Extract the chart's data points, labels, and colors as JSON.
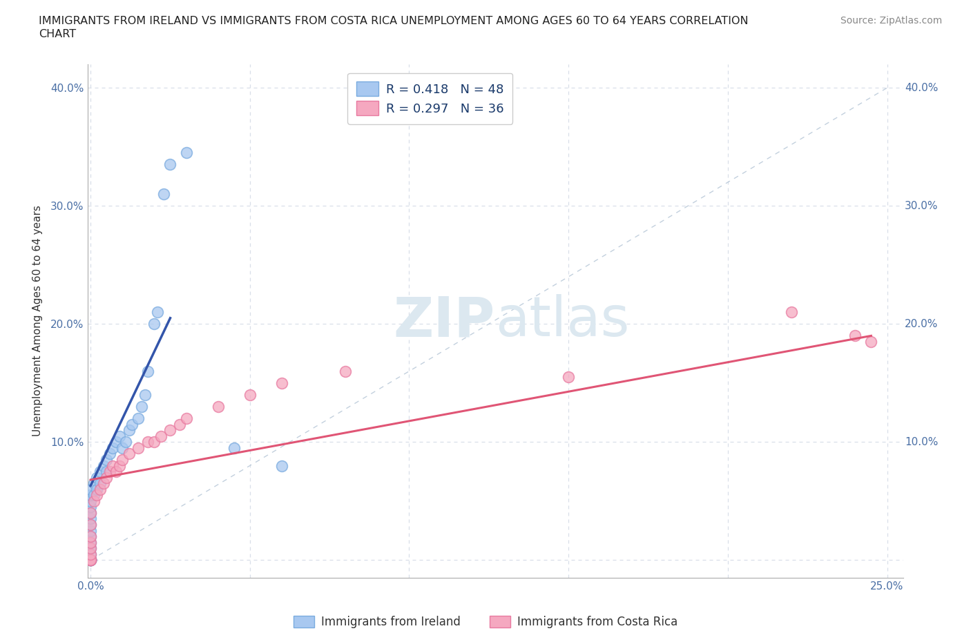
{
  "title_line1": "IMMIGRANTS FROM IRELAND VS IMMIGRANTS FROM COSTA RICA UNEMPLOYMENT AMONG AGES 60 TO 64 YEARS CORRELATION",
  "title_line2": "CHART",
  "source": "Source: ZipAtlas.com",
  "ylabel": "Unemployment Among Ages 60 to 64 years",
  "xlim": [
    -0.001,
    0.255
  ],
  "ylim": [
    -0.015,
    0.42
  ],
  "xticks": [
    0.0,
    0.05,
    0.1,
    0.15,
    0.2,
    0.25
  ],
  "yticks": [
    0.0,
    0.1,
    0.2,
    0.3,
    0.4
  ],
  "xticklabels": [
    "0.0%",
    "",
    "",
    "",
    "",
    "25.0%"
  ],
  "yticklabels": [
    "",
    "10.0%",
    "20.0%",
    "30.0%",
    "40.0%"
  ],
  "color_ireland": "#a8c8f0",
  "color_ireland_edge": "#7aabdf",
  "color_costa_rica": "#f5a8c0",
  "color_costa_rica_edge": "#e87aa0",
  "color_line_ireland": "#3355aa",
  "color_line_costa_rica": "#e05575",
  "color_ref_line": "#b8c8d8",
  "background_color": "#ffffff",
  "grid_color": "#d8dfe8",
  "watermark_color": "#dce8f0",
  "ireland_x": [
    0.0,
    0.0,
    0.0,
    0.0,
    0.0,
    0.0,
    0.0,
    0.0,
    0.0,
    0.0,
    0.0,
    0.0,
    0.0,
    0.0,
    0.0,
    0.0,
    0.0,
    0.0,
    0.0,
    0.0,
    0.001,
    0.001,
    0.002,
    0.002,
    0.003,
    0.003,
    0.004,
    0.005,
    0.005,
    0.006,
    0.007,
    0.008,
    0.009,
    0.01,
    0.011,
    0.012,
    0.013,
    0.015,
    0.016,
    0.017,
    0.018,
    0.02,
    0.021,
    0.023,
    0.025,
    0.03,
    0.045,
    0.06
  ],
  "ireland_y": [
    0.0,
    0.0,
    0.0,
    0.0,
    0.0,
    0.0,
    0.0,
    0.0,
    0.005,
    0.01,
    0.015,
    0.02,
    0.025,
    0.03,
    0.035,
    0.04,
    0.045,
    0.05,
    0.055,
    0.06,
    0.055,
    0.065,
    0.06,
    0.07,
    0.065,
    0.075,
    0.08,
    0.075,
    0.085,
    0.09,
    0.095,
    0.1,
    0.105,
    0.095,
    0.1,
    0.11,
    0.115,
    0.12,
    0.13,
    0.14,
    0.16,
    0.2,
    0.21,
    0.31,
    0.335,
    0.345,
    0.095,
    0.08
  ],
  "costa_rica_x": [
    0.0,
    0.0,
    0.0,
    0.0,
    0.0,
    0.0,
    0.0,
    0.0,
    0.0,
    0.0,
    0.001,
    0.002,
    0.003,
    0.004,
    0.005,
    0.006,
    0.007,
    0.008,
    0.009,
    0.01,
    0.012,
    0.015,
    0.018,
    0.02,
    0.022,
    0.025,
    0.028,
    0.03,
    0.04,
    0.05,
    0.06,
    0.08,
    0.15,
    0.22,
    0.24,
    0.245
  ],
  "costa_rica_y": [
    0.0,
    0.0,
    0.0,
    0.0,
    0.005,
    0.01,
    0.015,
    0.02,
    0.03,
    0.04,
    0.05,
    0.055,
    0.06,
    0.065,
    0.07,
    0.075,
    0.08,
    0.075,
    0.08,
    0.085,
    0.09,
    0.095,
    0.1,
    0.1,
    0.105,
    0.11,
    0.115,
    0.12,
    0.13,
    0.14,
    0.15,
    0.16,
    0.155,
    0.21,
    0.19,
    0.185
  ],
  "ireland_trend_x": [
    0.0,
    0.025
  ],
  "ireland_trend_y": [
    0.063,
    0.205
  ],
  "costa_rica_trend_x": [
    0.0,
    0.245
  ],
  "costa_rica_trend_y": [
    0.068,
    0.19
  ]
}
